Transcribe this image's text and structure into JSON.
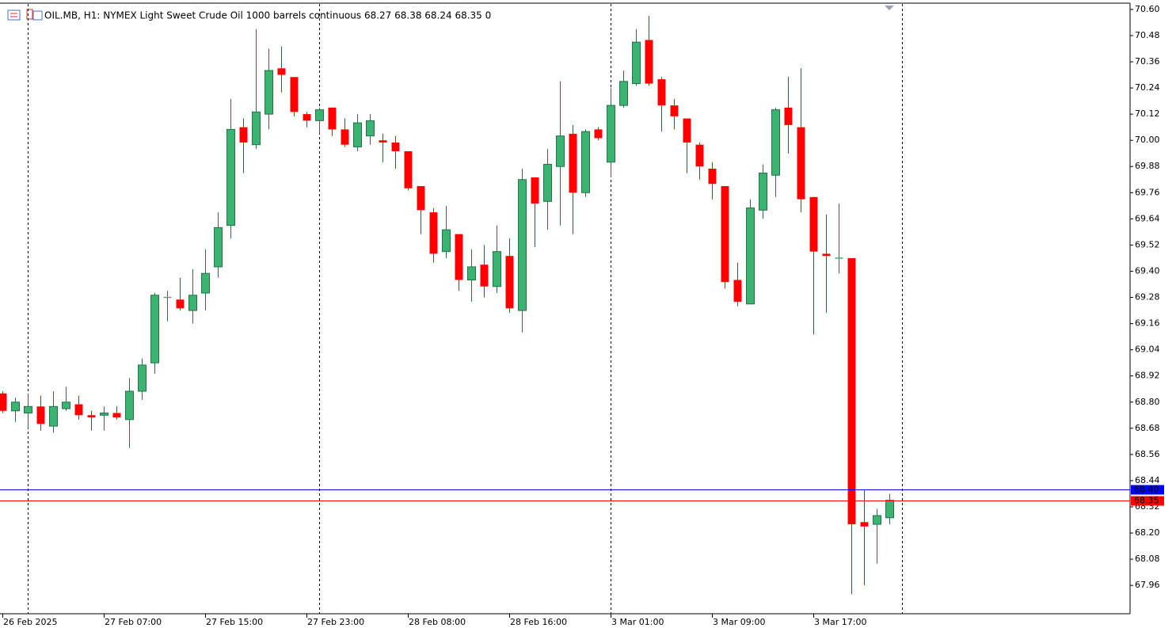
{
  "chart_data": {
    "type": "candlestick",
    "title": "OIL.MB, H1:  NYMEX Light Sweet Crude Oil 1000 barrels continuous  68.27 68.38 68.24 68.35  0",
    "categories": [
      "26 Feb 2025",
      null,
      null,
      null,
      null,
      null,
      null,
      null,
      "27 Feb 07:00",
      null,
      null,
      null,
      null,
      null,
      null,
      null,
      "27 Feb 15:00",
      null,
      null,
      null,
      null,
      null,
      null,
      null,
      "27 Feb 23:00",
      null,
      null,
      null,
      null,
      null,
      null,
      null,
      "28 Feb 08:00",
      null,
      null,
      null,
      null,
      null,
      null,
      null,
      "28 Feb 16:00",
      null,
      null,
      null,
      null,
      null,
      null,
      null,
      "3 Mar 01:00",
      null,
      null,
      null,
      null,
      null,
      null,
      null,
      "3 Mar 09:00",
      null,
      null,
      null,
      null,
      null,
      null,
      null,
      "3 Mar 17:00",
      null,
      null,
      null,
      null,
      null,
      null
    ],
    "open": [
      68.84,
      68.76,
      68.75,
      68.78,
      68.69,
      68.77,
      68.79,
      68.74,
      68.74,
      68.75,
      68.72,
      68.85,
      68.98,
      69.28,
      69.27,
      69.22,
      69.3,
      69.42,
      69.61,
      70.06,
      69.98,
      70.12,
      70.33,
      70.29,
      70.12,
      70.09,
      70.15,
      70.05,
      69.97,
      70.02,
      70.0,
      69.99,
      69.95,
      69.79,
      69.67,
      69.49,
      69.57,
      69.36,
      69.43,
      69.33,
      69.47,
      69.22,
      69.83,
      69.72,
      69.88,
      70.03,
      69.76,
      70.05,
      69.9,
      70.16,
      70.26,
      70.46,
      70.28,
      70.16,
      70.1,
      69.98,
      69.87,
      69.79,
      69.36,
      69.25,
      69.68,
      69.84,
      70.15,
      70.06,
      69.74,
      69.48,
      69.46,
      69.46,
      68.25,
      68.24,
      68.27
    ],
    "high": [
      68.85,
      68.82,
      68.84,
      68.83,
      68.85,
      68.87,
      68.83,
      68.76,
      68.78,
      68.78,
      68.91,
      69.0,
      69.3,
      69.31,
      69.37,
      69.41,
      69.5,
      69.67,
      70.19,
      70.1,
      70.51,
      70.42,
      70.43,
      70.29,
      70.13,
      70.15,
      70.15,
      70.1,
      70.12,
      70.12,
      70.03,
      70.02,
      69.95,
      69.79,
      69.69,
      69.7,
      69.57,
      69.5,
      69.52,
      69.61,
      69.55,
      69.87,
      69.83,
      69.96,
      70.27,
      70.07,
      70.05,
      70.06,
      70.24,
      70.32,
      70.51,
      70.57,
      70.29,
      70.19,
      70.1,
      69.99,
      69.9,
      69.79,
      69.44,
      69.73,
      69.89,
      70.15,
      70.29,
      70.33,
      69.74,
      69.66,
      69.71,
      69.46,
      68.4,
      68.31,
      68.38
    ],
    "low": [
      68.75,
      68.71,
      68.68,
      68.67,
      68.66,
      68.76,
      68.72,
      68.67,
      68.67,
      68.72,
      68.59,
      68.81,
      68.93,
      69.17,
      69.22,
      69.16,
      69.22,
      69.37,
      69.55,
      69.85,
      69.96,
      70.05,
      70.22,
      70.11,
      70.06,
      70.03,
      70.02,
      69.97,
      69.95,
      69.98,
      69.9,
      69.87,
      69.77,
      69.57,
      69.44,
      69.46,
      69.31,
      69.26,
      69.28,
      69.3,
      69.21,
      69.12,
      69.51,
      69.59,
      69.61,
      69.57,
      69.74,
      70.0,
      69.83,
      70.15,
      70.25,
      70.25,
      70.04,
      70.05,
      69.85,
      69.82,
      69.73,
      69.32,
      69.24,
      69.25,
      69.64,
      69.74,
      69.94,
      69.67,
      69.11,
      69.21,
      69.39,
      67.92,
      67.96,
      68.06,
      68.24
    ],
    "close": [
      68.76,
      68.8,
      68.78,
      68.7,
      68.78,
      68.8,
      68.74,
      68.73,
      68.75,
      68.73,
      68.85,
      68.97,
      69.29,
      69.28,
      69.23,
      69.29,
      69.39,
      69.6,
      70.05,
      69.99,
      70.13,
      70.32,
      70.3,
      70.13,
      70.09,
      70.14,
      70.05,
      69.98,
      70.08,
      70.09,
      69.99,
      69.95,
      69.78,
      69.68,
      69.48,
      69.59,
      69.36,
      69.42,
      69.33,
      69.49,
      69.23,
      69.82,
      69.71,
      69.89,
      70.02,
      69.76,
      70.04,
      70.01,
      70.16,
      70.27,
      70.45,
      70.26,
      70.16,
      70.11,
      69.99,
      69.88,
      69.8,
      69.35,
      69.26,
      69.69,
      69.85,
      70.14,
      70.07,
      69.73,
      69.49,
      69.47,
      69.46,
      68.24,
      68.23,
      68.28,
      68.35
    ],
    "up_color": "#3cb371",
    "up_border": "#23704a",
    "down_color": "#ff0000",
    "ylim": [
      67.83,
      70.625
    ],
    "yticks": [
      {
        "value": 70.6,
        "label": "70.60"
      },
      70.48,
      70.36,
      70.24,
      70.12,
      {
        "value": 70,
        "label": "70.00"
      },
      69.88,
      69.76,
      69.64,
      69.52,
      {
        "value": 69.4,
        "label": "69.40"
      },
      69.28,
      69.16,
      69.04,
      68.92,
      {
        "value": 68.8,
        "label": "68.80"
      },
      68.68,
      68.56,
      68.44,
      68.32,
      {
        "value": 68.2,
        "label": "68.20"
      },
      68.08,
      67.96
    ],
    "price_lines": [
      {
        "value": 68.4,
        "label": "68.40",
        "color": "#0000ff"
      },
      {
        "value": 68.35,
        "label": "68.35",
        "color": "#ff0000"
      }
    ]
  }
}
